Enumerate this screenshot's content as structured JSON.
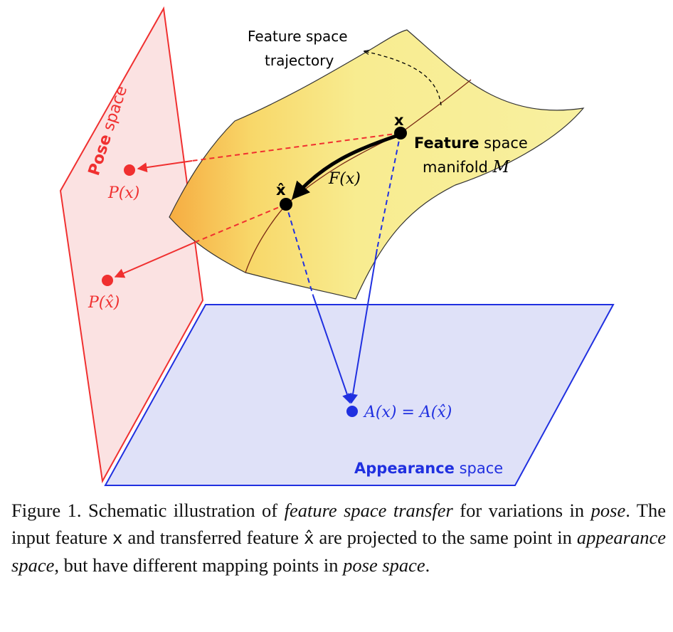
{
  "diagram": {
    "pose_space_label_bold": "Pose",
    "pose_space_label_rest": " space",
    "appearance_space_label_bold": "Appearance",
    "appearance_space_label_rest": " space",
    "feature_manifold_label_bold": "Feature",
    "feature_manifold_label_rest": " space",
    "feature_manifold_line2": "manifold ",
    "manifold_symbol": "M",
    "trajectory_label_line1": "Feature space",
    "trajectory_label_line2": "trajectory",
    "point_x": "x",
    "point_xhat": "x̂",
    "transfer_func": "F(x)",
    "pose_proj_x": "P(x)",
    "pose_proj_xhat": "P(x̂)",
    "appearance_proj": "A(x) = A(x̂)",
    "colors": {
      "pose": "#f03030",
      "appearance": "#2030e0",
      "manifold": "#f7ec8c"
    }
  },
  "caption": {
    "prefix": "Figure 1. Schematic illustration of ",
    "em1": "feature space transfer",
    "mid1": " for variations in ",
    "em2": "pose",
    "mid2": ". The input feature ",
    "code1": "x",
    "mid3": " and transferred feature ",
    "code2": "x̂",
    "mid4": " are projected to the same point in ",
    "em3": "appearance space",
    "mid5": ", but have different mapping points in ",
    "em4": "pose space",
    "suffix": "."
  }
}
